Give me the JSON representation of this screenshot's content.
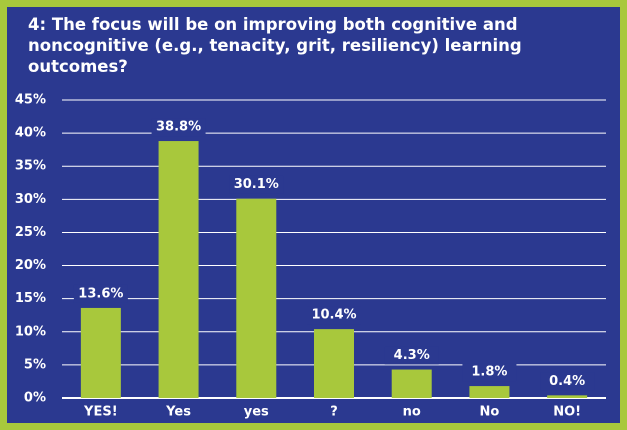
{
  "chart_data": {
    "type": "bar",
    "title": "4: The focus will be on improving both cognitive and noncognitive (e.g., tenacity, grit, resiliency) learning outcomes?",
    "categories": [
      "YES!",
      "Yes",
      "yes",
      "?",
      "no",
      "No",
      "NO!"
    ],
    "values": [
      13.6,
      38.8,
      30.1,
      10.4,
      4.3,
      1.8,
      0.4
    ],
    "value_labels": [
      "13.6%",
      "38.8%",
      "30.1%",
      "10.4%",
      "4.3%",
      "1.8%",
      "0.4%"
    ],
    "color": "#a8c83c",
    "ylim": [
      0,
      45
    ],
    "yticks": [
      {
        "value": 0,
        "label": "0%"
      },
      {
        "value": 5,
        "label": "5%"
      },
      {
        "value": 10,
        "label": "10%"
      },
      {
        "value": 15,
        "label": "15%"
      },
      {
        "value": 20,
        "label": "20%"
      },
      {
        "value": 25,
        "label": "25%"
      },
      {
        "value": 30,
        "label": "30%"
      },
      {
        "value": 35,
        "label": "35%"
      },
      {
        "value": 40,
        "label": "40%"
      },
      {
        "value": 45,
        "label": "45%"
      }
    ],
    "grid": true
  }
}
